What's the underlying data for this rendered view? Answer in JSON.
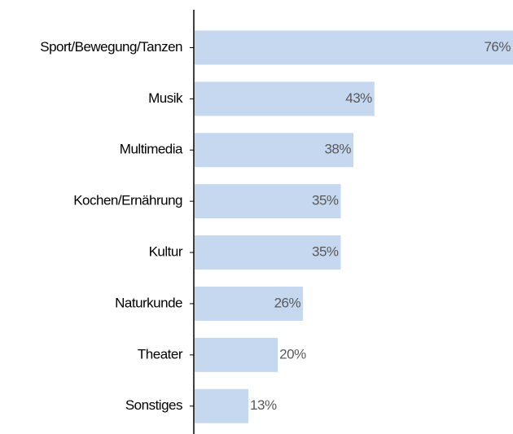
{
  "chart_data": {
    "type": "hbar",
    "categories": [
      "Sport/Bewegung/Tanzen",
      "Musik",
      "Multimedia",
      "Kochen/Ernährung",
      "Kultur",
      "Naturkunde",
      "Theater",
      "Sonstiges"
    ],
    "values": [
      76,
      43,
      38,
      35,
      35,
      26,
      20,
      13
    ],
    "value_labels": [
      "76%",
      "43%",
      "38%",
      "35%",
      "35%",
      "26%",
      "20%",
      "13%"
    ],
    "color": "#c6d8f0"
  }
}
